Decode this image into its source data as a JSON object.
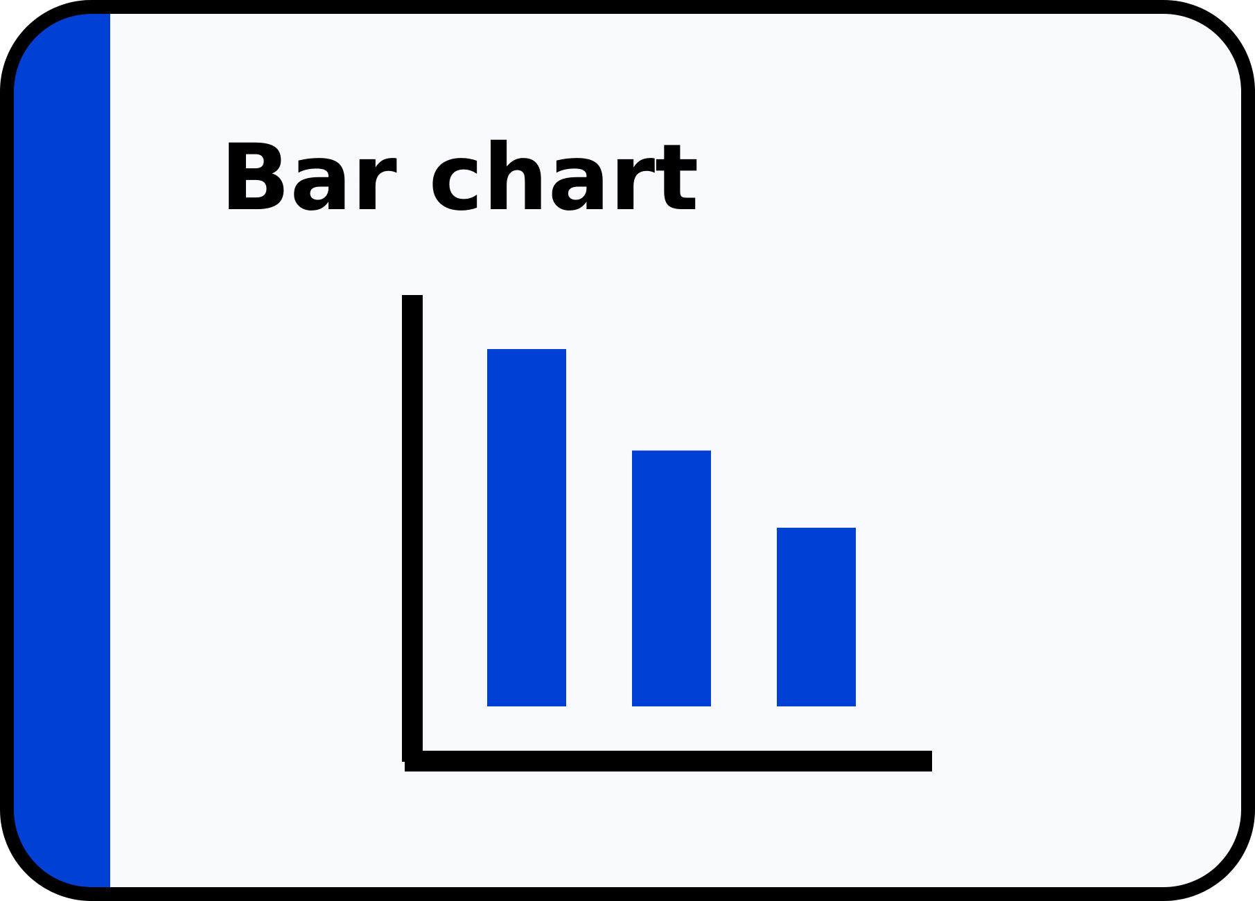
{
  "card": {
    "title": "Bar chart",
    "accent_color": "#0040D4",
    "background_color": "#F9FAFD",
    "border_color": "#000000"
  },
  "chart_data": {
    "type": "bar",
    "categories": [
      "",
      "",
      ""
    ],
    "values": [
      81,
      58,
      40.5
    ],
    "ylim": [
      0,
      100
    ],
    "title": "",
    "xlabel": "",
    "ylabel": "",
    "grid": false,
    "bar_color": "#0040D4"
  }
}
